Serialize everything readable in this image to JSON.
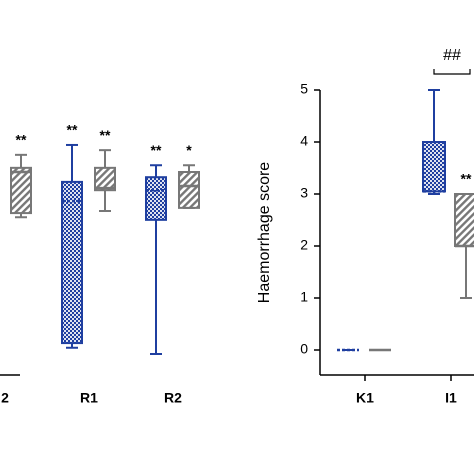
{
  "chart_data": [
    {
      "type": "box",
      "categories": [
        "2",
        "R1",
        "R2"
      ],
      "ylim": [
        0,
        5
      ],
      "series": [
        {
          "color": "#1f3fa0",
          "fill": "crosshatch",
          "values": [
            null,
            [
              0.12,
              0.21,
              2.94,
              3.31,
              4.02
            ],
            [
              0,
              2.58,
              3.15,
              3.4,
              3.63
            ]
          ],
          "annotations": [
            null,
            "**",
            "**"
          ]
        },
        {
          "color": "#777777",
          "fill": "stripes",
          "values": [
            [
              2.63,
              2.71,
              3.5,
              3.58,
              3.83
            ],
            [
              2.75,
              3.15,
              3.19,
              3.58,
              3.92
            ],
            [
              2.81,
              2.81,
              3.23,
              3.5,
              3.63
            ]
          ],
          "annotations": [
            "**",
            "**",
            "*"
          ]
        }
      ]
    },
    {
      "type": "box",
      "y_label": "Haemorrhage score",
      "categories": [
        "K1",
        "I1"
      ],
      "ylim": [
        0,
        5
      ],
      "yticks": [
        0,
        1,
        2,
        3,
        4,
        5
      ],
      "bracket_label": "##",
      "series": [
        {
          "color": "#1f3fa0",
          "fill": "crosshatch",
          "values": [
            [
              0,
              0,
              0,
              0,
              0
            ],
            [
              3,
              3.05,
              3.05,
              4,
              5
            ]
          ],
          "annotations": [
            null,
            null
          ]
        },
        {
          "color": "#777777",
          "fill": "stripes",
          "values": [
            [
              0,
              0,
              0,
              0,
              0
            ],
            [
              1,
              2,
              2,
              3,
              3
            ]
          ],
          "annotations": [
            null,
            "**"
          ]
        }
      ]
    }
  ]
}
